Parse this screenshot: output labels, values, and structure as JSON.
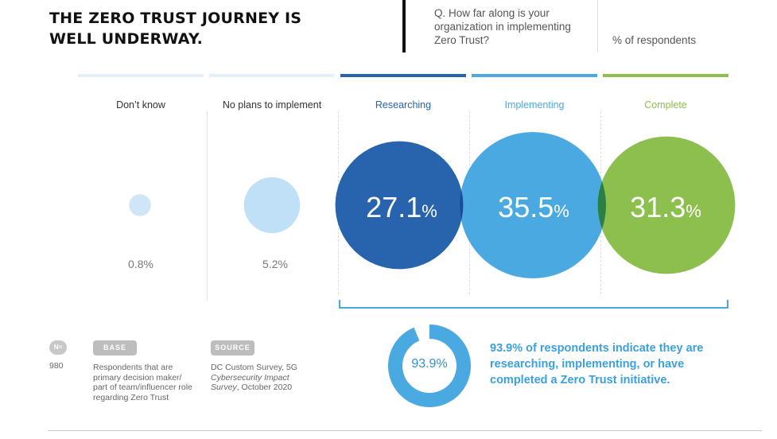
{
  "header": {
    "title_line1": "THE ZERO TRUST JOURNEY IS",
    "title_line2": "WELL UNDERWAY.",
    "question": "Q. How far along is your organization in implementing Zero Trust?",
    "units_label": "% of respondents"
  },
  "chart_data": {
    "type": "bubble",
    "title": "THE ZERO TRUST JOURNEY IS WELL UNDERWAY.",
    "categories": [
      "Don’t know",
      "No plans to implement",
      "Researching",
      "Implementing",
      "Complete"
    ],
    "values": [
      0.8,
      5.2,
      27.1,
      35.5,
      31.3
    ],
    "unit": "% of respondents",
    "value_labels": [
      "0.8%",
      "5.2%",
      "27.1",
      "35.5",
      "31.3"
    ],
    "percent_sign": "%",
    "colors": [
      "#cfe6f7",
      "#bfe0f7",
      "#2864ad",
      "#4ba9e2",
      "#8dbf4f"
    ],
    "overlap_colors": [
      "#1a4c96",
      "#2b7f46"
    ],
    "label_colors": [
      "#333333",
      "#333333",
      "#2864ad",
      "#4ba9e2",
      "#8dbf4f"
    ],
    "aggregate": {
      "value": 93.9,
      "label": "93.9%",
      "description": "93.9% of respondents indicate they are researching, implementing, or have completed a Zero Trust initiative.",
      "color": "#4ba9e2"
    }
  },
  "footer": {
    "n_label": "N=",
    "n_value": "980",
    "base_tag": "BASE",
    "base_text": "Respondents that are primary decision maker/ part of team/influencer role regarding Zero Trust",
    "source_tag": "SOURCE",
    "source_text_1": "DC Custom Survey, 5G ",
    "source_text_2": "Cybersecurity Impact Survey",
    "source_text_3": ", October 2020"
  }
}
